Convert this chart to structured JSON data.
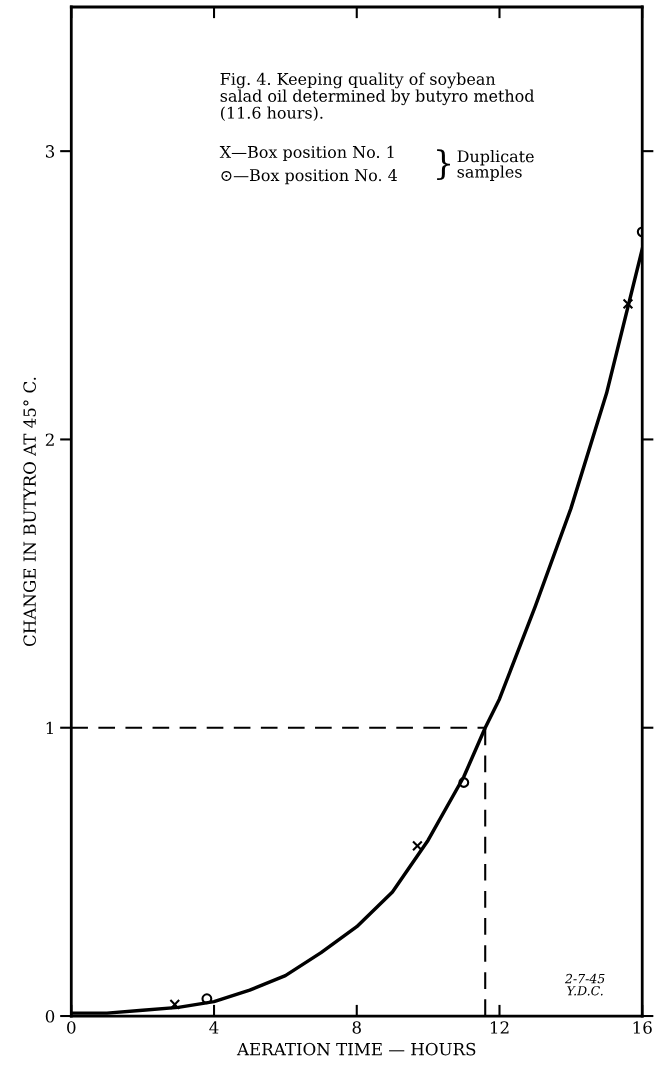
{
  "chart_data": {
    "type": "scatter",
    "title": "Fig. 4. Keeping quality of soybean\nsalad oil determined by butyro method\n(11.6 hours).",
    "xlabel": "AERATION TIME — HOURS",
    "ylabel": "CHANGE IN BUTYRO AT 45° C.",
    "xlim": [
      0,
      16
    ],
    "xticks": [
      0,
      4,
      8,
      12,
      16
    ],
    "ylim": [
      0,
      3.5
    ],
    "yticks": [
      0,
      1,
      2,
      3
    ],
    "grid": false,
    "legend": false,
    "series": [
      {
        "marker": "cross",
        "color": "#000000",
        "x": [
          2.9,
          9.7,
          15.6
        ],
        "values": [
          0.04,
          0.59,
          2.47
        ]
      },
      {
        "marker": "circle",
        "color": "#000000",
        "x": [
          3.8,
          11.0,
          16.0
        ],
        "values": [
          0.06,
          0.81,
          2.72
        ]
      },
      {
        "type": "line",
        "marker": "none",
        "line_style": "solid",
        "color": "#000000",
        "x": [
          0,
          1,
          2,
          3,
          4,
          5,
          6,
          7,
          8,
          9,
          10,
          11,
          11.6,
          12,
          13,
          14,
          15,
          16
        ],
        "values": [
          0.01,
          0.01,
          0.02,
          0.03,
          0.05,
          0.09,
          0.14,
          0.22,
          0.31,
          0.43,
          0.61,
          0.83,
          1.0,
          1.1,
          1.42,
          1.76,
          2.16,
          2.66
        ]
      }
    ],
    "ref_lines": [
      {
        "axis": "y",
        "value": 1,
        "line_style": "dashed"
      },
      {
        "axis": "x",
        "value": 11.6,
        "line_style": "dashed"
      }
    ],
    "annotations": [
      "X—Box position No. 1",
      "⊙—Box position No. 4",
      "}",
      "Duplicate\nsamples",
      "2-7-45\nY.D.C."
    ]
  }
}
